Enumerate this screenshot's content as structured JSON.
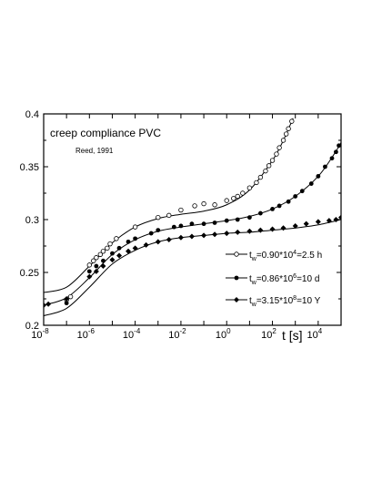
{
  "chart_data": {
    "type": "scatter",
    "title": "creep compliance   PVC",
    "subtitle": "Reed, 1991",
    "xlabel": "t [s]",
    "ylabel": "",
    "x_scale": "log",
    "xlim": [
      1e-08,
      100000.0
    ],
    "ylim": [
      0.2,
      0.4
    ],
    "x_ticks": [
      {
        "base": "10",
        "exp": "-8",
        "value": 1e-08
      },
      {
        "base": "10",
        "exp": "-6",
        "value": 1e-06
      },
      {
        "base": "10",
        "exp": "-4",
        "value": 0.0001
      },
      {
        "base": "10",
        "exp": "-2",
        "value": 0.01
      },
      {
        "base": "10",
        "exp": "0",
        "value": 1
      },
      {
        "base": "10",
        "exp": "2",
        "value": 100
      },
      {
        "base": "10",
        "exp": "4",
        "value": 10000
      }
    ],
    "y_ticks": [
      {
        "label": "0.2",
        "value": 0.2
      },
      {
        "label": "0.25",
        "value": 0.25
      },
      {
        "label": "0.3",
        "value": 0.3
      },
      {
        "label": "0.35",
        "value": 0.35
      },
      {
        "label": "0.4",
        "value": 0.4
      }
    ],
    "grid": false,
    "legend_position": "bottom-right",
    "series": [
      {
        "legend": {
          "t": "t",
          "w": "w",
          "pre": "=0.90*10",
          "sup": "4",
          "post": "=2.5 h"
        },
        "marker": "open-circle",
        "points": [
          [
            1e-07,
            0.224
          ],
          [
            1.5e-07,
            0.227
          ],
          [
            1e-06,
            0.257
          ],
          [
            1.5e-06,
            0.261
          ],
          [
            2e-06,
            0.264
          ],
          [
            3e-06,
            0.267
          ],
          [
            4e-06,
            0.27
          ],
          [
            6e-06,
            0.273
          ],
          [
            8e-06,
            0.277
          ],
          [
            1.5e-05,
            0.282
          ],
          [
            0.0001,
            0.293
          ],
          [
            0.001,
            0.302
          ],
          [
            0.003,
            0.304
          ],
          [
            0.01,
            0.309
          ],
          [
            0.04,
            0.313
          ],
          [
            0.1,
            0.315
          ],
          [
            0.3,
            0.314
          ],
          [
            1,
            0.318
          ],
          [
            2,
            0.32
          ],
          [
            3,
            0.322
          ],
          [
            5,
            0.325
          ],
          [
            10,
            0.33
          ],
          [
            20,
            0.335
          ],
          [
            30,
            0.34
          ],
          [
            50,
            0.346
          ],
          [
            70,
            0.351
          ],
          [
            100,
            0.356
          ],
          [
            150,
            0.362
          ],
          [
            200,
            0.368
          ],
          [
            300,
            0.375
          ],
          [
            400,
            0.381
          ],
          [
            500,
            0.386
          ],
          [
            700,
            0.393
          ]
        ],
        "curve": [
          [
            1e-08,
            0.231
          ],
          [
            1e-07,
            0.236
          ],
          [
            1e-06,
            0.256
          ],
          [
            1e-05,
            0.278
          ],
          [
            0.0001,
            0.293
          ],
          [
            0.001,
            0.301
          ],
          [
            0.01,
            0.305
          ],
          [
            0.1,
            0.308
          ],
          [
            1,
            0.314
          ],
          [
            10,
            0.328
          ],
          [
            100,
            0.356
          ],
          [
            300,
            0.375
          ],
          [
            700,
            0.393
          ],
          [
            800,
            0.396
          ]
        ]
      },
      {
        "legend": {
          "t": "t",
          "w": "w",
          "pre": "=0.86*10",
          "sup": "6",
          "post": "=10 d"
        },
        "marker": "filled-circle",
        "points": [
          [
            1e-07,
            0.221
          ],
          [
            1e-06,
            0.251
          ],
          [
            2e-06,
            0.256
          ],
          [
            4e-06,
            0.261
          ],
          [
            1e-05,
            0.268
          ],
          [
            2e-05,
            0.273
          ],
          [
            5e-05,
            0.279
          ],
          [
            0.0001,
            0.282
          ],
          [
            0.0005,
            0.287
          ],
          [
            0.001,
            0.29
          ],
          [
            0.005,
            0.293
          ],
          [
            0.01,
            0.294
          ],
          [
            0.03,
            0.296
          ],
          [
            0.1,
            0.296
          ],
          [
            0.3,
            0.297
          ],
          [
            1,
            0.299
          ],
          [
            3,
            0.3
          ],
          [
            10,
            0.302
          ],
          [
            30,
            0.306
          ],
          [
            100,
            0.31
          ],
          [
            200,
            0.313
          ],
          [
            500,
            0.317
          ],
          [
            1000,
            0.322
          ],
          [
            2000,
            0.327
          ],
          [
            5000,
            0.334
          ],
          [
            10000,
            0.341
          ],
          [
            20000,
            0.35
          ],
          [
            40000,
            0.358
          ],
          [
            60000,
            0.364
          ],
          [
            80000,
            0.37
          ]
        ],
        "curve": [
          [
            1e-08,
            0.219
          ],
          [
            1e-07,
            0.226
          ],
          [
            1e-06,
            0.245
          ],
          [
            1e-05,
            0.267
          ],
          [
            0.0001,
            0.281
          ],
          [
            0.001,
            0.289
          ],
          [
            0.01,
            0.293
          ],
          [
            0.1,
            0.296
          ],
          [
            1,
            0.299
          ],
          [
            10,
            0.303
          ],
          [
            100,
            0.31
          ],
          [
            1000,
            0.322
          ],
          [
            10000,
            0.341
          ],
          [
            50000,
            0.362
          ],
          [
            100000,
            0.373
          ]
        ]
      },
      {
        "legend": {
          "t": "t",
          "w": "w",
          "pre": "=3.15*10",
          "sup": "8",
          "post": "=10 Y"
        },
        "marker": "filled-diamond",
        "points": [
          [
            1e-08,
            0.219
          ],
          [
            1.6e-08,
            0.22
          ],
          [
            1e-07,
            0.225
          ],
          [
            1e-06,
            0.246
          ],
          [
            2e-06,
            0.251
          ],
          [
            4e-06,
            0.256
          ],
          [
            1e-05,
            0.262
          ],
          [
            2e-05,
            0.266
          ],
          [
            5e-05,
            0.27
          ],
          [
            0.0001,
            0.273
          ],
          [
            0.0003,
            0.276
          ],
          [
            0.001,
            0.279
          ],
          [
            0.003,
            0.281
          ],
          [
            0.01,
            0.283
          ],
          [
            0.03,
            0.284
          ],
          [
            0.1,
            0.285
          ],
          [
            0.3,
            0.286
          ],
          [
            1,
            0.287
          ],
          [
            3,
            0.288
          ],
          [
            10,
            0.289
          ],
          [
            30,
            0.29
          ],
          [
            100,
            0.291
          ],
          [
            300,
            0.292
          ],
          [
            1000,
            0.294
          ],
          [
            3000,
            0.296
          ],
          [
            10000,
            0.298
          ],
          [
            30000,
            0.299
          ],
          [
            60000,
            0.3
          ],
          [
            100000,
            0.302
          ]
        ],
        "curve": [
          [
            1e-08,
            0.209
          ],
          [
            1e-07,
            0.216
          ],
          [
            1e-06,
            0.236
          ],
          [
            1e-05,
            0.258
          ],
          [
            0.0001,
            0.271
          ],
          [
            0.001,
            0.279
          ],
          [
            0.01,
            0.283
          ],
          [
            0.1,
            0.285
          ],
          [
            1,
            0.287
          ],
          [
            10,
            0.288
          ],
          [
            100,
            0.29
          ],
          [
            1000,
            0.292
          ],
          [
            10000,
            0.295
          ],
          [
            100000,
            0.3
          ]
        ]
      }
    ]
  }
}
